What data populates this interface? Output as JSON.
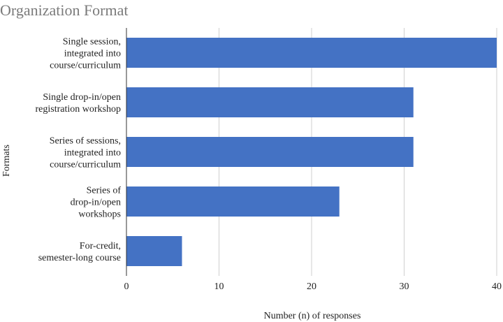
{
  "chart_data": {
    "type": "bar",
    "orientation": "horizontal",
    "title": "Organization Format",
    "xlabel": "Number (n) of responses",
    "ylabel": "Formats",
    "xlim": [
      0,
      40
    ],
    "xticks": [
      0,
      10,
      20,
      30,
      40
    ],
    "grid": true,
    "bar_color": "#4472C4",
    "categories": [
      [
        "Single session,",
        "integrated into",
        "course/curriculum"
      ],
      [
        "Single drop-in/open",
        "registration workshop"
      ],
      [
        "Series of sessions,",
        "integrated into",
        "course/curriculum"
      ],
      [
        "Series of",
        "drop-in/open",
        "workshops"
      ],
      [
        "For-credit,",
        "semester-long course"
      ]
    ],
    "values": [
      40,
      31,
      31,
      23,
      6
    ]
  }
}
